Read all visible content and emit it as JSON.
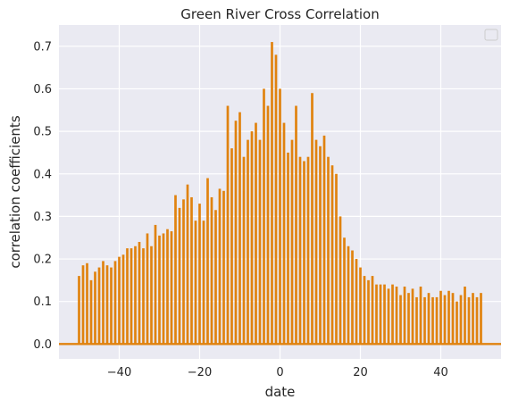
{
  "chart_data": {
    "type": "bar",
    "title": "Green River Cross Correlation",
    "xlabel": "date",
    "ylabel": "correlation coefficients",
    "xlim": [
      -55,
      55
    ],
    "ylim": [
      -0.035,
      0.75
    ],
    "x_ticks": [
      -40,
      -20,
      0,
      20,
      40
    ],
    "x_tick_labels": [
      "−40",
      "−20",
      "0",
      "20",
      "40"
    ],
    "y_ticks": [
      0.0,
      0.1,
      0.2,
      0.3,
      0.4,
      0.5,
      0.6,
      0.7
    ],
    "y_tick_labels": [
      "0.0",
      "0.1",
      "0.2",
      "0.3",
      "0.4",
      "0.5",
      "0.6",
      "0.7"
    ],
    "grid": true,
    "legend": "top-right, empty",
    "colors": {
      "bar": "#e0820f",
      "background": "#eaeaf2",
      "grid": "#ffffff",
      "baseline": "#e0820f"
    },
    "x": [
      -50,
      -49,
      -48,
      -47,
      -46,
      -45,
      -44,
      -43,
      -42,
      -41,
      -40,
      -39,
      -38,
      -37,
      -36,
      -35,
      -34,
      -33,
      -32,
      -31,
      -30,
      -29,
      -28,
      -27,
      -26,
      -25,
      -24,
      -23,
      -22,
      -21,
      -20,
      -19,
      -18,
      -17,
      -16,
      -15,
      -14,
      -13,
      -12,
      -11,
      -10,
      -9,
      -8,
      -7,
      -6,
      -5,
      -4,
      -3,
      -2,
      -1,
      0,
      1,
      2,
      3,
      4,
      5,
      6,
      7,
      8,
      9,
      10,
      11,
      12,
      13,
      14,
      15,
      16,
      17,
      18,
      19,
      20,
      21,
      22,
      23,
      24,
      25,
      26,
      27,
      28,
      29,
      30,
      31,
      32,
      33,
      34,
      35,
      36,
      37,
      38,
      39,
      40,
      41,
      42,
      43,
      44,
      45,
      46,
      47,
      48,
      49,
      50
    ],
    "values": [
      0.16,
      0.185,
      0.19,
      0.15,
      0.17,
      0.18,
      0.195,
      0.185,
      0.18,
      0.195,
      0.205,
      0.21,
      0.225,
      0.225,
      0.23,
      0.24,
      0.225,
      0.26,
      0.23,
      0.28,
      0.255,
      0.26,
      0.27,
      0.265,
      0.35,
      0.32,
      0.34,
      0.375,
      0.345,
      0.29,
      0.33,
      0.29,
      0.39,
      0.345,
      0.315,
      0.365,
      0.36,
      0.56,
      0.46,
      0.525,
      0.545,
      0.44,
      0.48,
      0.5,
      0.52,
      0.48,
      0.6,
      0.56,
      0.71,
      0.68,
      0.6,
      0.52,
      0.45,
      0.48,
      0.56,
      0.44,
      0.43,
      0.44,
      0.59,
      0.48,
      0.465,
      0.49,
      0.44,
      0.42,
      0.4,
      0.3,
      0.25,
      0.23,
      0.22,
      0.2,
      0.18,
      0.16,
      0.15,
      0.16,
      0.14,
      0.14,
      0.14,
      0.13,
      0.14,
      0.135,
      0.115,
      0.135,
      0.12,
      0.13,
      0.11,
      0.135,
      0.11,
      0.12,
      0.11,
      0.11,
      0.125,
      0.115,
      0.125,
      0.12,
      0.1,
      0.115,
      0.135,
      0.11,
      0.12,
      0.11,
      0.12
    ]
  }
}
